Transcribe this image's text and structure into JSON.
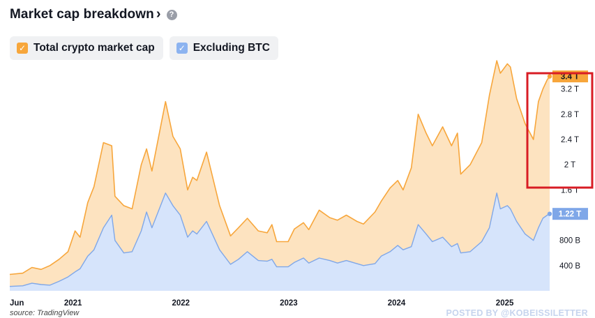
{
  "header": {
    "title": "Market cap breakdown",
    "chevron": "›",
    "help": "?"
  },
  "legend": [
    {
      "label": "Total crypto market cap",
      "check": "✓",
      "color": "#f7a63b"
    },
    {
      "label": "Excluding BTC",
      "check": "✓",
      "color": "#8cb3f0"
    }
  ],
  "footer": {
    "source": "source: TradingView",
    "watermark": "POSTED BY @KOBEISSILETTER"
  },
  "colors": {
    "total_line": "#f7a63b",
    "total_fill": "#fde3c0",
    "excl_line": "#7fa7e8",
    "excl_fill": "#d6e4fb",
    "highlight_box": "#d81c24"
  },
  "chart_data": {
    "type": "area",
    "title": "Market cap breakdown",
    "x_tick_labels": [
      "Jun",
      "2021",
      "2022",
      "2023",
      "2024",
      "2025"
    ],
    "y_tick_labels": [
      "400 B",
      "800 B",
      "1.6 T",
      "2 T",
      "2.4 T",
      "2.8 T",
      "3.2 T"
    ],
    "ylim_trillions": [
      0,
      3.55
    ],
    "last_value_labels": {
      "total": "3.4 T",
      "excluding_btc": "1.22 T"
    },
    "highlight_box": true,
    "series": [
      {
        "name": "Total crypto market cap",
        "x": [
          "2020-06-01",
          "2020-07-15",
          "2020-08-15",
          "2020-09-15",
          "2020-10-15",
          "2020-11-15",
          "2020-12-15",
          "2021-01-08",
          "2021-01-25",
          "2021-02-20",
          "2021-03-13",
          "2021-04-14",
          "2021-05-12",
          "2021-05-23",
          "2021-06-22",
          "2021-07-20",
          "2021-08-20",
          "2021-09-07",
          "2021-09-25",
          "2021-11-10",
          "2021-12-05",
          "2021-12-30",
          "2022-01-24",
          "2022-02-10",
          "2022-02-24",
          "2022-03-29",
          "2022-05-12",
          "2022-06-18",
          "2022-07-15",
          "2022-08-14",
          "2022-09-20",
          "2022-10-20",
          "2022-11-05",
          "2022-11-21",
          "2022-12-30",
          "2023-01-20",
          "2023-02-20",
          "2023-03-10",
          "2023-04-14",
          "2023-05-20",
          "2023-06-15",
          "2023-07-15",
          "2023-08-20",
          "2023-09-11",
          "2023-10-20",
          "2023-11-10",
          "2023-12-10",
          "2024-01-05",
          "2024-01-23",
          "2024-02-20",
          "2024-03-14",
          "2024-04-10",
          "2024-05-01",
          "2024-06-05",
          "2024-07-05",
          "2024-07-25",
          "2024-08-05",
          "2024-09-06",
          "2024-10-15",
          "2024-11-10",
          "2024-12-05",
          "2024-12-17",
          "2025-01-10",
          "2025-01-20",
          "2025-02-10",
          "2025-03-11",
          "2025-04-08",
          "2025-04-25",
          "2025-05-10",
          "2025-05-25",
          "2025-06-02"
        ],
        "values_trillions": [
          0.26,
          0.28,
          0.37,
          0.34,
          0.4,
          0.5,
          0.62,
          0.95,
          0.85,
          1.4,
          1.65,
          2.35,
          2.3,
          1.5,
          1.35,
          1.3,
          2.0,
          2.25,
          1.9,
          3.0,
          2.45,
          2.25,
          1.6,
          1.8,
          1.75,
          2.2,
          1.35,
          0.87,
          1.0,
          1.15,
          0.95,
          0.92,
          1.05,
          0.78,
          0.78,
          0.98,
          1.08,
          0.97,
          1.28,
          1.16,
          1.12,
          1.2,
          1.1,
          1.06,
          1.25,
          1.42,
          1.63,
          1.75,
          1.6,
          1.95,
          2.8,
          2.5,
          2.3,
          2.6,
          2.3,
          2.5,
          1.85,
          2.0,
          2.35,
          3.1,
          3.65,
          3.45,
          3.6,
          3.55,
          3.05,
          2.65,
          2.4,
          3.0,
          3.2,
          3.35,
          3.4
        ]
      },
      {
        "name": "Excluding BTC",
        "x": [
          "2020-06-01",
          "2020-07-15",
          "2020-08-15",
          "2020-09-15",
          "2020-10-15",
          "2020-11-15",
          "2020-12-15",
          "2021-01-08",
          "2021-01-25",
          "2021-02-20",
          "2021-03-13",
          "2021-04-14",
          "2021-05-12",
          "2021-05-23",
          "2021-06-22",
          "2021-07-20",
          "2021-08-20",
          "2021-09-07",
          "2021-09-25",
          "2021-11-10",
          "2021-12-05",
          "2021-12-30",
          "2022-01-24",
          "2022-02-10",
          "2022-02-24",
          "2022-03-29",
          "2022-05-12",
          "2022-06-18",
          "2022-07-15",
          "2022-08-14",
          "2022-09-20",
          "2022-10-20",
          "2022-11-05",
          "2022-11-21",
          "2022-12-30",
          "2023-01-20",
          "2023-02-20",
          "2023-03-10",
          "2023-04-14",
          "2023-05-20",
          "2023-06-15",
          "2023-07-15",
          "2023-08-20",
          "2023-09-11",
          "2023-10-20",
          "2023-11-10",
          "2023-12-10",
          "2024-01-05",
          "2024-01-23",
          "2024-02-20",
          "2024-03-14",
          "2024-04-10",
          "2024-05-01",
          "2024-06-05",
          "2024-07-05",
          "2024-07-25",
          "2024-08-05",
          "2024-09-06",
          "2024-10-15",
          "2024-11-10",
          "2024-12-05",
          "2024-12-17",
          "2025-01-10",
          "2025-01-20",
          "2025-02-10",
          "2025-03-11",
          "2025-04-08",
          "2025-04-25",
          "2025-05-10",
          "2025-05-25",
          "2025-06-02"
        ],
        "values_trillions": [
          0.07,
          0.08,
          0.12,
          0.1,
          0.09,
          0.15,
          0.22,
          0.3,
          0.35,
          0.55,
          0.65,
          1.0,
          1.2,
          0.8,
          0.6,
          0.62,
          0.95,
          1.25,
          1.0,
          1.55,
          1.35,
          1.2,
          0.85,
          0.95,
          0.9,
          1.1,
          0.65,
          0.42,
          0.5,
          0.62,
          0.48,
          0.47,
          0.5,
          0.38,
          0.38,
          0.45,
          0.52,
          0.44,
          0.52,
          0.48,
          0.44,
          0.48,
          0.43,
          0.4,
          0.43,
          0.55,
          0.62,
          0.72,
          0.65,
          0.7,
          1.05,
          0.9,
          0.78,
          0.85,
          0.7,
          0.75,
          0.6,
          0.62,
          0.78,
          1.0,
          1.55,
          1.3,
          1.35,
          1.3,
          1.1,
          0.9,
          0.8,
          1.0,
          1.15,
          1.2,
          1.22
        ]
      }
    ]
  }
}
